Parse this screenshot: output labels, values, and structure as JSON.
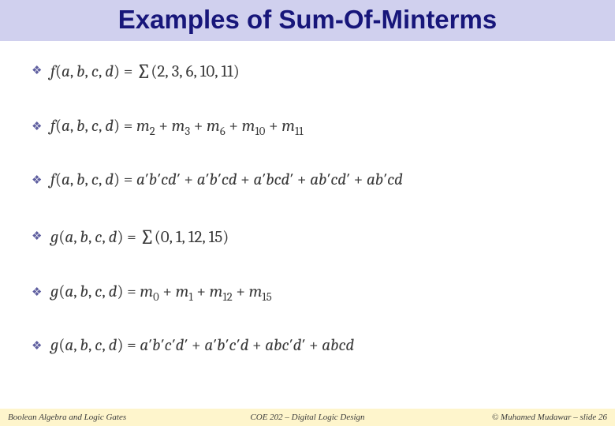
{
  "colors": {
    "title_band_bg": "#d0d0ee",
    "title_text": "#17167a",
    "bullet": "#5f5fa0",
    "formula_text": "#3a3a3a",
    "footer_bg": "#fef5cc",
    "footer_text": "#3a3a3a"
  },
  "title": "Examples of Sum-Of-Minterms",
  "lines": [
    {
      "kind": "sigma",
      "fn": "f",
      "args": "a, b, c, d",
      "list": "(2, 3, 6, 10, 11)"
    },
    {
      "kind": "minterms",
      "fn": "f",
      "args": "a, b, c, d",
      "subs": [
        "2",
        "3",
        "6",
        "10",
        "11"
      ]
    },
    {
      "kind": "terms",
      "fn": "f",
      "args": "a, b, c, d",
      "terms": [
        "a′b′cd′",
        "a′b′cd",
        "a′bcd′",
        "ab′cd′",
        "ab′cd"
      ]
    },
    {
      "kind": "sigma",
      "fn": "g",
      "args": "a, b, c, d",
      "list": "(0, 1, 12, 15)"
    },
    {
      "kind": "minterms",
      "fn": "g",
      "args": "a, b, c, d",
      "subs": [
        "0",
        "1",
        "12",
        "15"
      ]
    },
    {
      "kind": "terms",
      "fn": "g",
      "args": "a, b, c, d",
      "terms": [
        "a′b′c′d′",
        "a′b′c′d",
        "abc′d′",
        "abcd"
      ]
    }
  ],
  "footer": {
    "left": "Boolean Algebra and Logic Gates",
    "center": "COE 202 – Digital Logic Design",
    "right": "© Muhamed Mudawar – slide 26"
  }
}
